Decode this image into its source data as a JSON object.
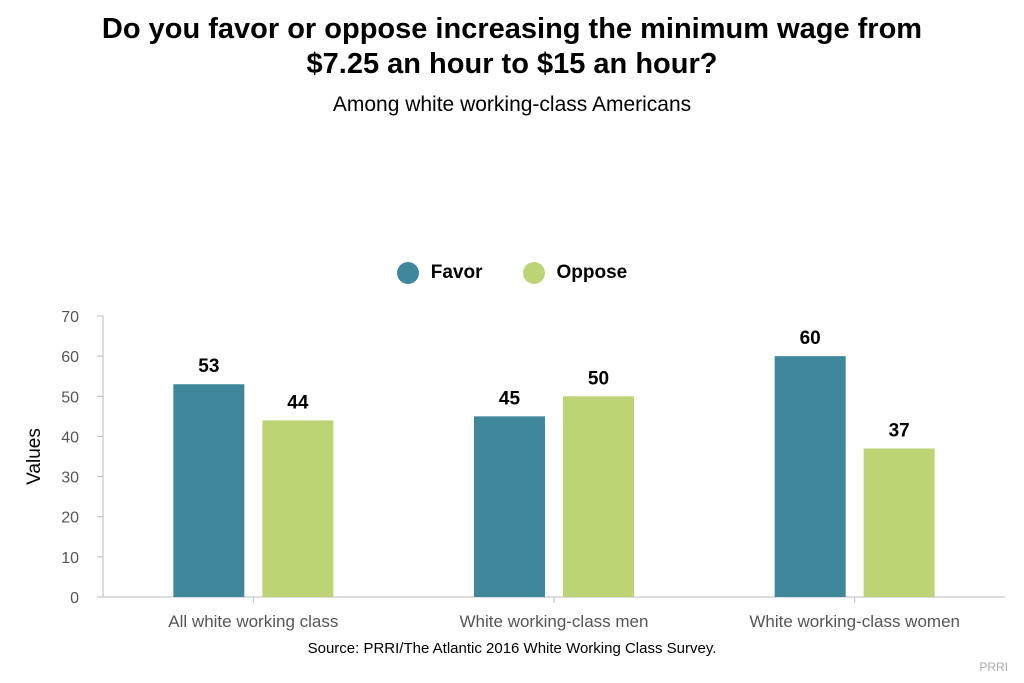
{
  "title_lines": [
    "Do you favor or oppose increasing the minimum wage from",
    "$7.25 an hour to $15 an hour?"
  ],
  "subtitle": "Among white working-class Americans",
  "source": "Source: PRRI/The Atlantic 2016 White Working Class Survey.",
  "brand": "PRRI",
  "chart_data": {
    "type": "bar",
    "title": "Do you favor or oppose increasing the minimum wage from $7.25 an hour to $15 an hour?",
    "subtitle": "Among white working-class Americans",
    "categories": [
      "All white working class",
      "White working-class men",
      "White working-class women"
    ],
    "series": [
      {
        "name": "Favor",
        "color": "#3f889c",
        "values": [
          53,
          45,
          60
        ]
      },
      {
        "name": "Oppose",
        "color": "#bcd474",
        "values": [
          44,
          50,
          37
        ]
      }
    ],
    "xlabel": "",
    "ylabel": "Values",
    "ylim": [
      0,
      70
    ],
    "yticks": [
      0,
      10,
      20,
      30,
      40,
      50,
      60,
      70
    ],
    "grid": false,
    "legend_position": "top-center",
    "data_labels": true
  }
}
